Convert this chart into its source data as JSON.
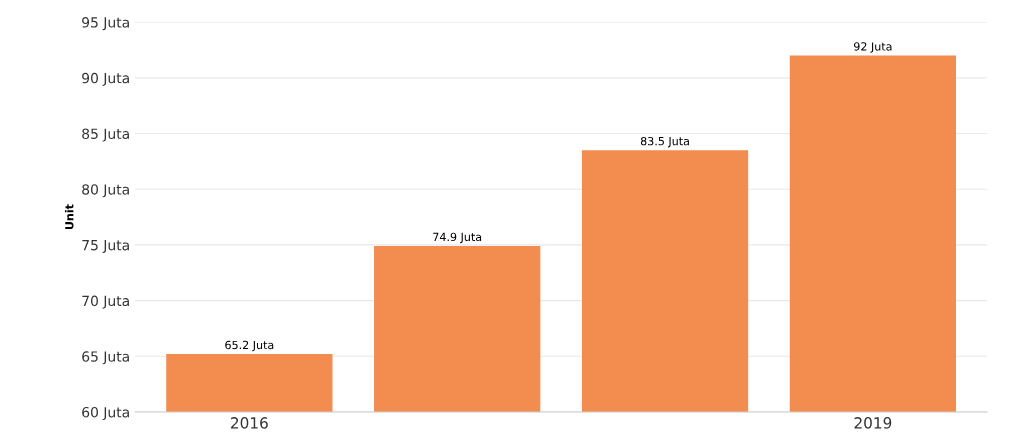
{
  "chart_data": {
    "type": "bar",
    "ylabel": "Unit",
    "categories": [
      "2016",
      null,
      null,
      "2019"
    ],
    "values": [
      65.2,
      74.9,
      83.5,
      92
    ],
    "value_labels": [
      "65.2 Juta",
      "74.9 Juta",
      "83.5 Juta",
      "92 Juta"
    ],
    "color": "#f28c4f",
    "ylim": [
      60,
      95
    ],
    "yticks": [
      {
        "value": 60,
        "label": "60 Juta"
      },
      {
        "value": 65,
        "label": "65 Juta"
      },
      {
        "value": 70,
        "label": "70 Juta"
      },
      {
        "value": 75,
        "label": "75 Juta"
      },
      {
        "value": 80,
        "label": "80 Juta"
      },
      {
        "value": 85,
        "label": "85 Juta"
      },
      {
        "value": 90,
        "label": "90 Juta"
      },
      {
        "value": 95,
        "label": "95 Juta"
      }
    ],
    "grid": "y",
    "legend": false
  }
}
